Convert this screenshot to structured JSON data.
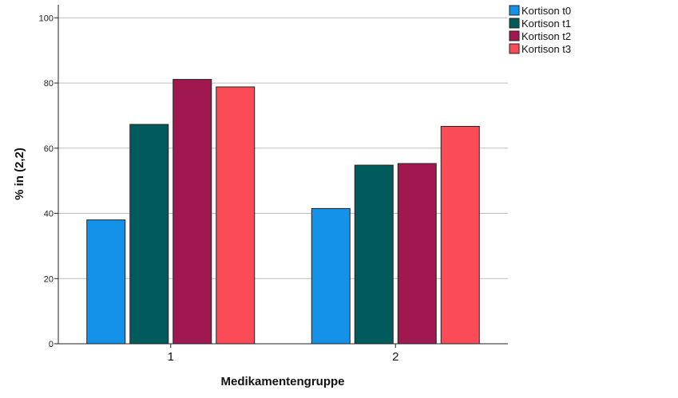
{
  "chart_data": {
    "type": "bar",
    "title": "",
    "xlabel": "Medikamentengruppe",
    "ylabel": "% in (2,2)",
    "categories": [
      "1",
      "2"
    ],
    "ylim": [
      0,
      104
    ],
    "yticks": [
      0,
      20,
      40,
      60,
      80,
      100
    ],
    "grid": true,
    "legend_position": "top-right",
    "series": [
      {
        "name": "Kortison t0",
        "color": "#1491e8",
        "values": [
          38.0,
          41.5
        ]
      },
      {
        "name": "Kortison t1",
        "color": "#005c5c",
        "values": [
          67.3,
          54.8
        ]
      },
      {
        "name": "Kortison t2",
        "color": "#a0184f",
        "values": [
          81.1,
          55.3
        ]
      },
      {
        "name": "Kortison t3",
        "color": "#fb4b57",
        "values": [
          78.8,
          66.7
        ]
      }
    ]
  }
}
